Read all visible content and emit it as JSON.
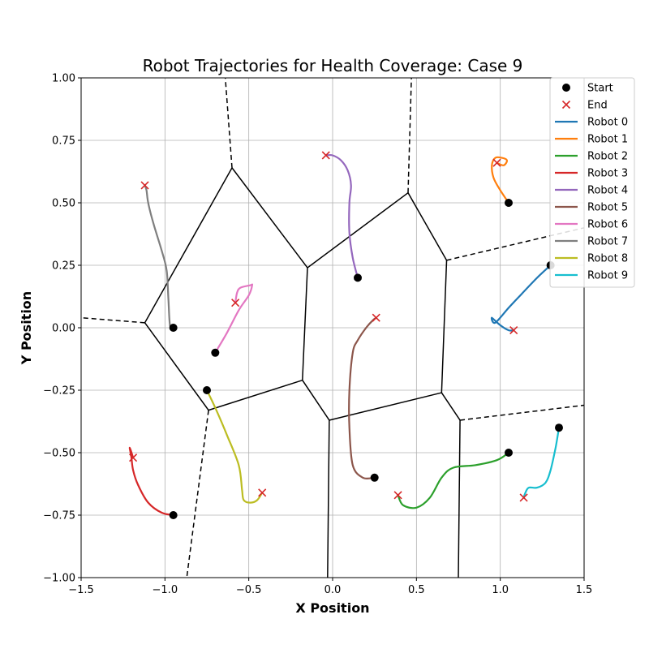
{
  "chart_data": {
    "type": "line",
    "title": "Robot Trajectories for Health Coverage: Case 9",
    "xlabel": "X Position",
    "ylabel": "Y Position",
    "xlim": [
      -1.5,
      1.5
    ],
    "ylim": [
      -1.0,
      1.0
    ],
    "xticks": [
      "−1.5",
      "−1.0",
      "−0.5",
      "0.0",
      "0.5",
      "1.0",
      "1.5"
    ],
    "yticks": [
      "−1.00",
      "−0.75",
      "−0.50",
      "−0.25",
      "0.00",
      "0.25",
      "0.50",
      "0.75",
      "1.00"
    ],
    "grid": true,
    "legend_position": "top-right",
    "legend": {
      "start_label": "Start",
      "end_label": "End",
      "start_color": "#000000",
      "end_color": "#d62728"
    },
    "voronoi_solid": [
      [
        [
          -0.6,
          0.64
        ],
        [
          -1.12,
          0.02
        ]
      ],
      [
        [
          -0.6,
          0.64
        ],
        [
          -0.15,
          0.24
        ]
      ],
      [
        [
          -0.15,
          0.24
        ],
        [
          0.45,
          0.54
        ]
      ],
      [
        [
          0.45,
          0.54
        ],
        [
          0.68,
          0.27
        ]
      ],
      [
        [
          0.68,
          0.27
        ],
        [
          0.65,
          -0.26
        ]
      ],
      [
        [
          -0.15,
          0.24
        ],
        [
          -0.18,
          -0.21
        ]
      ],
      [
        [
          -1.12,
          0.02
        ],
        [
          -0.74,
          -0.33
        ]
      ],
      [
        [
          -0.74,
          -0.33
        ],
        [
          -0.18,
          -0.21
        ]
      ],
      [
        [
          -0.18,
          -0.21
        ],
        [
          -0.02,
          -0.37
        ]
      ],
      [
        [
          -0.02,
          -0.37
        ],
        [
          0.65,
          -0.26
        ]
      ],
      [
        [
          0.65,
          -0.26
        ],
        [
          0.76,
          -0.37
        ]
      ],
      [
        [
          -0.02,
          -0.37
        ],
        [
          -0.03,
          -1.0
        ]
      ],
      [
        [
          0.76,
          -0.37
        ],
        [
          0.75,
          -1.0
        ]
      ]
    ],
    "voronoi_dashed": [
      [
        [
          -0.6,
          0.64
        ],
        [
          -0.64,
          1.0
        ]
      ],
      [
        [
          0.45,
          0.54
        ],
        [
          0.47,
          1.0
        ]
      ],
      [
        [
          0.68,
          0.27
        ],
        [
          1.5,
          0.4
        ]
      ],
      [
        [
          -1.12,
          0.02
        ],
        [
          -1.5,
          0.04
        ]
      ],
      [
        [
          -0.74,
          -0.33
        ],
        [
          -0.87,
          -1.0
        ]
      ],
      [
        [
          0.76,
          -0.37
        ],
        [
          1.5,
          -0.31
        ]
      ]
    ],
    "series": [
      {
        "name": "Robot 0",
        "color": "#1f77b4",
        "x": [
          1.3,
          1.22,
          1.12,
          1.05,
          0.97,
          0.95,
          1.0,
          1.05,
          1.08
        ],
        "y": [
          0.25,
          0.2,
          0.13,
          0.08,
          0.02,
          0.04,
          0.01,
          -0.01,
          -0.01
        ]
      },
      {
        "name": "Robot 1",
        "color": "#ff7f0e",
        "x": [
          1.05,
          1.0,
          0.96,
          0.95,
          0.97,
          1.01,
          1.04,
          1.02,
          0.98
        ],
        "y": [
          0.5,
          0.55,
          0.6,
          0.65,
          0.68,
          0.68,
          0.67,
          0.65,
          0.66
        ]
      },
      {
        "name": "Robot 2",
        "color": "#2ca02c",
        "x": [
          1.05,
          0.98,
          0.85,
          0.72,
          0.65,
          0.58,
          0.5,
          0.42,
          0.39
        ],
        "y": [
          -0.5,
          -0.53,
          -0.55,
          -0.56,
          -0.6,
          -0.68,
          -0.72,
          -0.71,
          -0.67
        ]
      },
      {
        "name": "Robot 3",
        "color": "#d62728",
        "x": [
          -0.95,
          -1.02,
          -1.1,
          -1.16,
          -1.19,
          -1.2,
          -1.21,
          -1.19
        ],
        "y": [
          -0.75,
          -0.74,
          -0.7,
          -0.63,
          -0.57,
          -0.52,
          -0.48,
          -0.52
        ]
      },
      {
        "name": "Robot 4",
        "color": "#9467bd",
        "x": [
          0.15,
          0.12,
          0.1,
          0.1,
          0.11,
          0.09,
          0.05,
          0.0,
          -0.04
        ],
        "y": [
          0.2,
          0.28,
          0.38,
          0.5,
          0.57,
          0.63,
          0.67,
          0.69,
          0.69
        ]
      },
      {
        "name": "Robot 5",
        "color": "#8c564b",
        "x": [
          0.25,
          0.18,
          0.12,
          0.1,
          0.1,
          0.12,
          0.15,
          0.2,
          0.24,
          0.26
        ],
        "y": [
          -0.6,
          -0.6,
          -0.55,
          -0.4,
          -0.25,
          -0.1,
          -0.05,
          0.0,
          0.03,
          0.04
        ]
      },
      {
        "name": "Robot 6",
        "color": "#e377c2",
        "x": [
          -0.7,
          -0.63,
          -0.56,
          -0.5,
          -0.48,
          -0.49,
          -0.55,
          -0.57,
          -0.58
        ],
        "y": [
          -0.1,
          -0.02,
          0.07,
          0.13,
          0.17,
          0.17,
          0.16,
          0.14,
          0.1
        ]
      },
      {
        "name": "Robot 7",
        "color": "#7f7f7f",
        "x": [
          -0.95,
          -0.97,
          -0.98,
          -0.99,
          -1.02,
          -1.07,
          -1.1,
          -1.11,
          -1.12
        ],
        "y": [
          0.0,
          0.01,
          0.12,
          0.23,
          0.31,
          0.42,
          0.5,
          0.55,
          0.57
        ]
      },
      {
        "name": "Robot 8",
        "color": "#bcbd22",
        "x": [
          -0.75,
          -0.7,
          -0.63,
          -0.56,
          -0.54,
          -0.53,
          -0.49,
          -0.45,
          -0.42
        ],
        "y": [
          -0.25,
          -0.32,
          -0.43,
          -0.55,
          -0.65,
          -0.69,
          -0.7,
          -0.69,
          -0.66
        ]
      },
      {
        "name": "Robot 9",
        "color": "#17becf",
        "x": [
          1.35,
          1.33,
          1.3,
          1.27,
          1.22,
          1.17,
          1.15,
          1.14
        ],
        "y": [
          -0.4,
          -0.48,
          -0.57,
          -0.62,
          -0.64,
          -0.64,
          -0.66,
          -0.68
        ]
      }
    ]
  }
}
